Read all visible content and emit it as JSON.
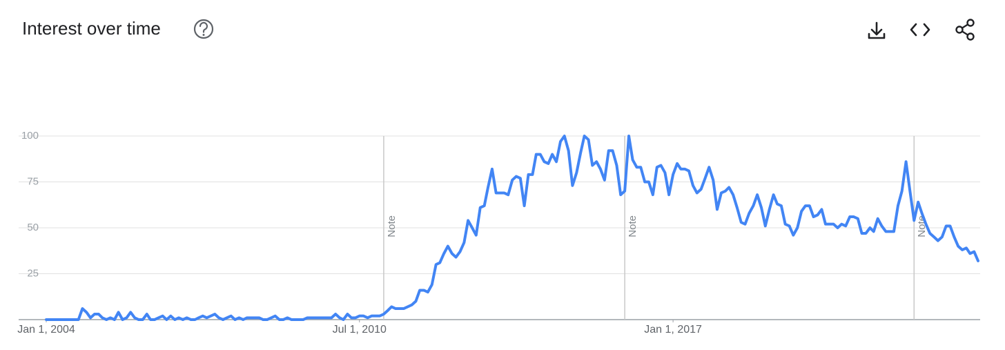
{
  "chart_data": {
    "type": "line",
    "title": "Interest over time",
    "color": "#4285f4",
    "grid": true,
    "ylim": [
      0,
      100
    ],
    "yticks": [
      25,
      50,
      75,
      100
    ],
    "xlim": [
      "2004-01-01",
      "2023-05-01"
    ],
    "xticks": [
      {
        "value": "2004-01-01",
        "label": "Jan 1, 2004"
      },
      {
        "value": "2010-07-01",
        "label": "Jul 1, 2010"
      },
      {
        "value": "2017-01-01",
        "label": "Jan 1, 2017"
      }
    ],
    "annotations": [
      {
        "x": "2011-01-01",
        "label": "Note"
      },
      {
        "x": "2016-01-01",
        "label": "Note"
      },
      {
        "x": "2022-01-01",
        "label": "Note"
      }
    ],
    "x": [
      "2004-01-01",
      "2004-02-01",
      "2004-03-01",
      "2004-04-01",
      "2004-05-01",
      "2004-06-01",
      "2004-07-01",
      "2004-08-01",
      "2004-09-01",
      "2004-10-01",
      "2004-11-01",
      "2004-12-01",
      "2005-01-01",
      "2005-02-01",
      "2005-03-01",
      "2005-04-01",
      "2005-05-01",
      "2005-06-01",
      "2005-07-01",
      "2005-08-01",
      "2005-09-01",
      "2005-10-01",
      "2005-11-01",
      "2005-12-01",
      "2006-01-01",
      "2006-02-01",
      "2006-03-01",
      "2006-04-01",
      "2006-05-01",
      "2006-06-01",
      "2006-07-01",
      "2006-08-01",
      "2006-09-01",
      "2006-10-01",
      "2006-11-01",
      "2006-12-01",
      "2007-01-01",
      "2007-02-01",
      "2007-03-01",
      "2007-04-01",
      "2007-05-01",
      "2007-06-01",
      "2007-07-01",
      "2007-08-01",
      "2007-09-01",
      "2007-10-01",
      "2007-11-01",
      "2007-12-01",
      "2008-01-01",
      "2008-02-01",
      "2008-03-01",
      "2008-04-01",
      "2008-05-01",
      "2008-06-01",
      "2008-07-01",
      "2008-08-01",
      "2008-09-01",
      "2008-10-01",
      "2008-11-01",
      "2008-12-01",
      "2009-01-01",
      "2009-02-01",
      "2009-03-01",
      "2009-04-01",
      "2009-05-01",
      "2009-06-01",
      "2009-07-01",
      "2009-08-01",
      "2009-09-01",
      "2009-10-01",
      "2009-11-01",
      "2009-12-01",
      "2010-01-01",
      "2010-02-01",
      "2010-03-01",
      "2010-04-01",
      "2010-05-01",
      "2010-06-01",
      "2010-07-01",
      "2010-08-01",
      "2010-09-01",
      "2010-10-01",
      "2010-11-01",
      "2010-12-01",
      "2011-01-01",
      "2011-02-01",
      "2011-03-01",
      "2011-04-01",
      "2011-05-01",
      "2011-06-01",
      "2011-07-01",
      "2011-08-01",
      "2011-09-01",
      "2011-10-01",
      "2011-11-01",
      "2011-12-01",
      "2012-01-01",
      "2012-02-01",
      "2012-03-01",
      "2012-04-01",
      "2012-05-01",
      "2012-06-01",
      "2012-07-01",
      "2012-08-01",
      "2012-09-01",
      "2012-10-01",
      "2012-11-01",
      "2012-12-01",
      "2013-01-01",
      "2013-02-01",
      "2013-03-01",
      "2013-04-01",
      "2013-05-01",
      "2013-06-01",
      "2013-07-01",
      "2013-08-01",
      "2013-09-01",
      "2013-10-01",
      "2013-11-01",
      "2013-12-01",
      "2014-01-01",
      "2014-02-01",
      "2014-03-01",
      "2014-04-01",
      "2014-05-01",
      "2014-06-01",
      "2014-07-01",
      "2014-08-01",
      "2014-09-01",
      "2014-10-01",
      "2014-11-01",
      "2014-12-01",
      "2015-01-01",
      "2015-02-01",
      "2015-03-01",
      "2015-04-01",
      "2015-05-01",
      "2015-06-01",
      "2015-07-01",
      "2015-08-01",
      "2015-09-01",
      "2015-10-01",
      "2015-11-01",
      "2015-12-01",
      "2016-01-01",
      "2016-02-01",
      "2016-03-01",
      "2016-04-01",
      "2016-05-01",
      "2016-06-01",
      "2016-07-01",
      "2016-08-01",
      "2016-09-01",
      "2016-10-01",
      "2016-11-01",
      "2016-12-01",
      "2017-01-01",
      "2017-02-01",
      "2017-03-01",
      "2017-04-01",
      "2017-05-01",
      "2017-06-01",
      "2017-07-01",
      "2017-08-01",
      "2017-09-01",
      "2017-10-01",
      "2017-11-01",
      "2017-12-01",
      "2018-01-01",
      "2018-02-01",
      "2018-03-01",
      "2018-04-01",
      "2018-05-01",
      "2018-06-01",
      "2018-07-01",
      "2018-08-01",
      "2018-09-01",
      "2018-10-01",
      "2018-11-01",
      "2018-12-01",
      "2019-01-01",
      "2019-02-01",
      "2019-03-01",
      "2019-04-01",
      "2019-05-01",
      "2019-06-01",
      "2019-07-01",
      "2019-08-01",
      "2019-09-01",
      "2019-10-01",
      "2019-11-01",
      "2019-12-01",
      "2020-01-01",
      "2020-02-01",
      "2020-03-01",
      "2020-04-01",
      "2020-05-01",
      "2020-06-01",
      "2020-07-01",
      "2020-08-01",
      "2020-09-01",
      "2020-10-01",
      "2020-11-01",
      "2020-12-01",
      "2021-01-01",
      "2021-02-01",
      "2021-03-01",
      "2021-04-01",
      "2021-05-01",
      "2021-06-01",
      "2021-07-01",
      "2021-08-01",
      "2021-09-01",
      "2021-10-01",
      "2021-11-01",
      "2021-12-01",
      "2022-01-01",
      "2022-02-01",
      "2022-03-01",
      "2022-04-01",
      "2022-05-01",
      "2022-06-01",
      "2022-07-01",
      "2022-08-01",
      "2022-09-01",
      "2022-10-01",
      "2022-11-01",
      "2022-12-01",
      "2023-01-01",
      "2023-02-01",
      "2023-03-01",
      "2023-04-01",
      "2023-05-01"
    ],
    "values": [
      0,
      0,
      0,
      0,
      0,
      0,
      0,
      0,
      0,
      6,
      4,
      1,
      3,
      3,
      1,
      0,
      1,
      0,
      4,
      0,
      1,
      4,
      1,
      0,
      0,
      3,
      0,
      0,
      1,
      2,
      0,
      2,
      0,
      1,
      0,
      1,
      0,
      0,
      1,
      2,
      1,
      2,
      3,
      1,
      0,
      1,
      2,
      0,
      1,
      0,
      1,
      1,
      1,
      1,
      0,
      0,
      1,
      2,
      0,
      0,
      1,
      0,
      0,
      0,
      0,
      1,
      1,
      1,
      1,
      1,
      1,
      1,
      3,
      1,
      0,
      3,
      1,
      1,
      2,
      2,
      1,
      2,
      2,
      2,
      3,
      5,
      7,
      6,
      6,
      6,
      7,
      8,
      10,
      16,
      16,
      15,
      19,
      30,
      31,
      36,
      40,
      36,
      34,
      37,
      42,
      54,
      50,
      46,
      61,
      62,
      72,
      82,
      69,
      69,
      69,
      68,
      76,
      78,
      77,
      62,
      79,
      79,
      90,
      90,
      86,
      85,
      90,
      86,
      97,
      100,
      92,
      73,
      80,
      91,
      100,
      98,
      84,
      86,
      82,
      76,
      92,
      92,
      84,
      68,
      70,
      100,
      87,
      83,
      83,
      75,
      75,
      68,
      83,
      84,
      80,
      68,
      79,
      85,
      82,
      82,
      81,
      73,
      69,
      71,
      77,
      83,
      76,
      60,
      69,
      70,
      72,
      68,
      61,
      53,
      52,
      58,
      62,
      68,
      61,
      51,
      60,
      68,
      63,
      62,
      52,
      51,
      46,
      50,
      59,
      62,
      62,
      56,
      57,
      60,
      52,
      52,
      52,
      50,
      52,
      51,
      56,
      56,
      55,
      47,
      47,
      50,
      48,
      55,
      51,
      48,
      48,
      48,
      62,
      70,
      86,
      70,
      54,
      64,
      58,
      52,
      47,
      45,
      43,
      45,
      51,
      51,
      45,
      40,
      38,
      39,
      36,
      37,
      32
    ]
  }
}
